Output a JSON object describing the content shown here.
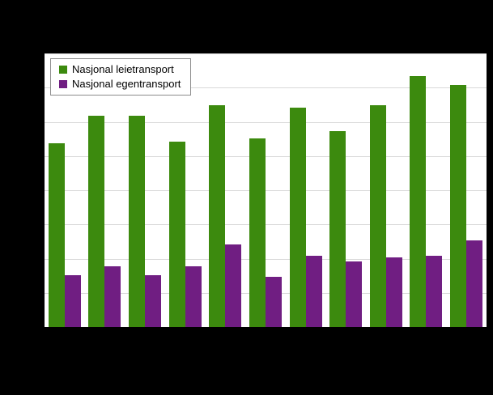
{
  "legend": {
    "items": [
      {
        "label": "Nasjonal leietransport",
        "color": "#3c8a0e"
      },
      {
        "label": "Nasjonal egentransport",
        "color": "#701e82"
      }
    ]
  },
  "chart_data": {
    "type": "bar",
    "title": "",
    "xlabel": "",
    "ylabel": "",
    "categories": [
      "",
      "",
      "",
      "",
      "",
      "",
      "",
      "",
      "",
      "",
      ""
    ],
    "series": [
      {
        "name": "Nasjonal leietransport",
        "color": "#3c8a0e",
        "values": [
          5.4,
          6.2,
          6.2,
          5.45,
          6.5,
          5.55,
          6.45,
          5.75,
          6.5,
          7.35,
          7.1
        ]
      },
      {
        "name": "Nasjonal egentransport",
        "color": "#701e82",
        "values": [
          1.55,
          1.8,
          1.55,
          1.8,
          2.45,
          1.5,
          2.1,
          1.95,
          2.05,
          2.1,
          2.55
        ]
      }
    ],
    "ylim": [
      0,
      8
    ],
    "grid": true,
    "gridline_step": 1,
    "legend_position": "top-left",
    "axis_tick_labels_visible": false
  },
  "colors": {
    "page_background": "#000000",
    "plot_background": "#ffffff",
    "gridline": "#d9d9d9",
    "axis": "#000000"
  }
}
